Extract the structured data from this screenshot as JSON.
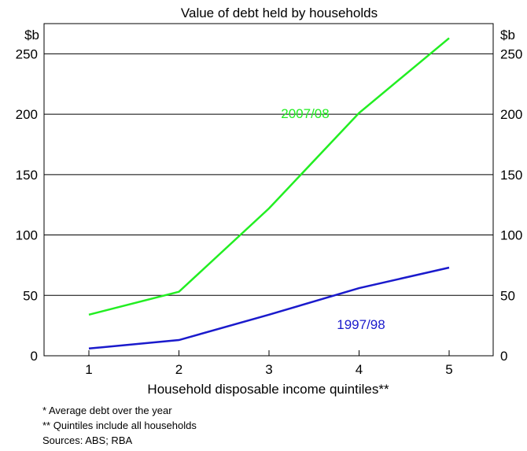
{
  "chart_data": {
    "type": "line",
    "title": "Value of debt held by households",
    "xlabel": "Household disposable income quintiles**",
    "ylabel_left": "$b",
    "ylabel_right": "$b",
    "categories": [
      "1",
      "2",
      "3",
      "4",
      "5"
    ],
    "ylim": [
      0,
      275
    ],
    "yticks": [
      0,
      50,
      100,
      150,
      200,
      250
    ],
    "grid": true,
    "series": [
      {
        "name": "2007/08",
        "color": "#22ee22",
        "values": [
          34,
          53,
          122,
          201,
          263
        ]
      },
      {
        "name": "1997/98",
        "color": "#1a1acc",
        "values": [
          6,
          13,
          34,
          56,
          73
        ]
      }
    ]
  },
  "notes": {
    "note1": "*  Average debt over the year",
    "note2": "** Quintiles include all households",
    "sources": "Sources: ABS; RBA"
  }
}
